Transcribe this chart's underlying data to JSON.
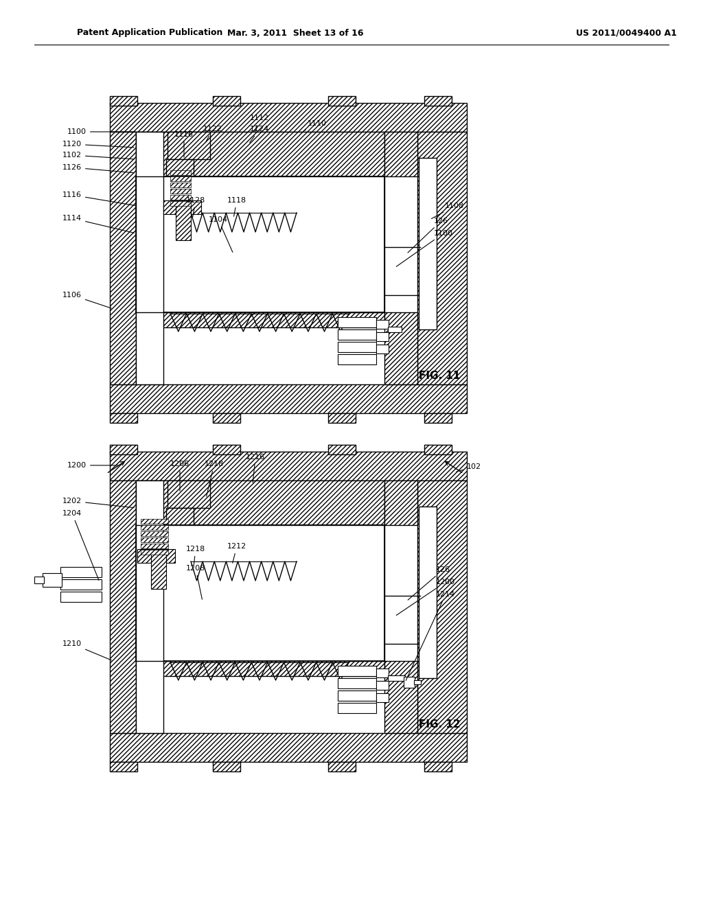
{
  "page_header_left": "Patent Application Publication",
  "page_header_mid": "Mar. 3, 2011  Sheet 13 of 16",
  "page_header_right": "US 2011/0049400 A1",
  "background": "#ffffff",
  "fig11_label": "FIG. 11",
  "fig12_label": "FIG. 12"
}
